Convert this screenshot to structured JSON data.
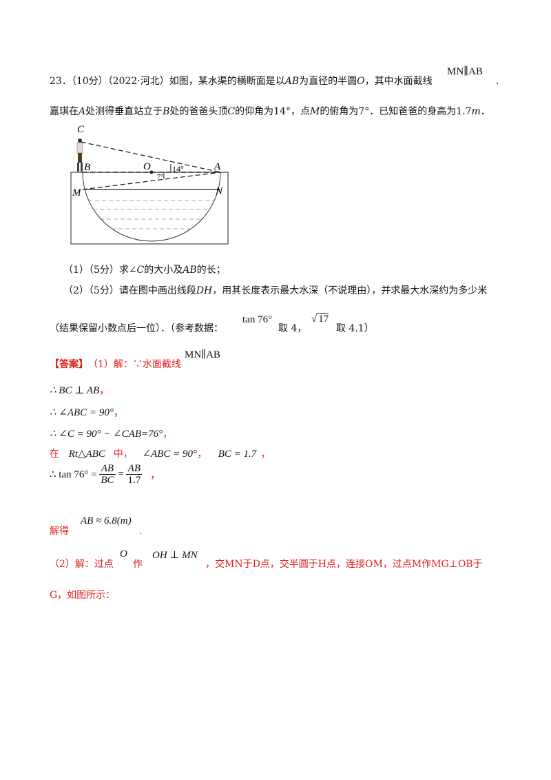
{
  "problem": {
    "number": "23．",
    "score": "（10分）",
    "source": "（2022·河北）",
    "stem_1": "如图，某水渠的横断面是以",
    "stem_ab": "AB",
    "stem_2": "为直径的半圆",
    "stem_o": "O",
    "stem_3": "，其中水面截线",
    "mn_ab": "MN∥AB",
    "period": ".",
    "line2_a": "嘉琪在",
    "line2_A": "A",
    "line2_b": "处测得垂直站立于",
    "line2_B": "B",
    "line2_c": "处的爸爸头顶",
    "line2_C": "C",
    "line2_d": "的仰角为14°，点",
    "line2_M": "M",
    "line2_e": "的俯角为7°．已知爸爸的身高为1.7",
    "line2_m": "m",
    "line2_end": "．"
  },
  "figure": {
    "label_C": "C",
    "label_B": "B",
    "label_O": "O",
    "label_A": "A",
    "label_M": "M",
    "label_N": "N",
    "angle_14": "14°",
    "angle_7": "7°"
  },
  "questions": {
    "q1_prefix": "（1）（5分）求∠",
    "q1_C": "C",
    "q1_mid": "的大小及",
    "q1_AB": "AB",
    "q1_end": "的长；",
    "q2_prefix": "（2）（5分）请在图中画出线段",
    "q2_DH": "DH",
    "q2_end": "，用其长度表示最大水深（不说理由），并求最大水深约为多少米",
    "q2_line2_a": "（结果保留小数点后一位）．（参考数据：",
    "tan76": "tan 76°",
    "q2_take4": "取 4，",
    "sqrt17": "17",
    "q2_take41": "取 4.1）"
  },
  "answer": {
    "tag": "【答案】",
    "p1_label": "（1）解：∵水面截线",
    "p1_mn_ab": "MN∥AB",
    "s1": "∴ BC ⊥ AB",
    "s1_end": "，",
    "s2": "∴ ∠ABC = 90°",
    "s2_end": "，",
    "s3": "∴ ∠C = 90° − ∠CAB=76°",
    "s3_end": "，",
    "s4_in": "在",
    "s4_tri": "Rt△ABC",
    "s4_mid": "中，",
    "s4_angle": "∠ABC = 90°",
    "s4_comma": "，",
    "s4_bc": "BC = 1.7",
    "s4_end": "，",
    "s5_lhs": "∴ tan 76° =",
    "s5_num1": "AB",
    "s5_den1": "BC",
    "s5_eq": "=",
    "s5_num2": "AB",
    "s5_den2": "1.7",
    "s5_end": "，",
    "s6_label": "解得",
    "s6_expr": "AB ≈ 6.8(m)",
    "s6_end": ".",
    "p2_a": "（2）解：过点",
    "p2_O": "O",
    "p2_zuo": "作",
    "p2_expr": "OH ⊥ MN",
    "p2_b": "，交MN于D点，交半圆于H点，连接OM，过点M作MG⊥OB于",
    "p2_c": "G，如图所示："
  }
}
